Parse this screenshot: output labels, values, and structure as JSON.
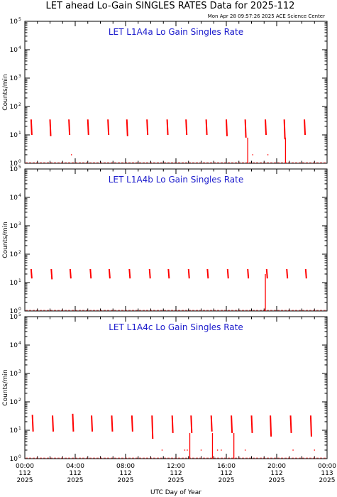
{
  "header": {
    "title": "LET ahead Lo-Gain SINGLES RATES Data for 2025-112",
    "timestamp": "Mon Apr 28 09:57:26 2025 ACE Science Center"
  },
  "axes": {
    "ylabel": "Counts/min",
    "xlabel": "UTC Day of Year",
    "y_tick_exponents": [
      "0",
      "1",
      "2",
      "3",
      "4",
      "5"
    ],
    "y_tick_base": "10",
    "x_ticks": [
      {
        "time": "00:00",
        "doy": "112",
        "year": "2025"
      },
      {
        "time": "04:00",
        "doy": "112",
        "year": "2025"
      },
      {
        "time": "08:00",
        "doy": "112",
        "year": "2025"
      },
      {
        "time": "12:00",
        "doy": "112",
        "year": "2025"
      },
      {
        "time": "16:00",
        "doy": "112",
        "year": "2025"
      },
      {
        "time": "20:00",
        "doy": "112",
        "year": "2025"
      },
      {
        "time": "00:00",
        "doy": "113",
        "year": "2025"
      }
    ]
  },
  "colors": {
    "trace": "#ff0000",
    "panel_title": "#1a1acc",
    "axis": "#000000"
  },
  "chart_data": [
    {
      "type": "line",
      "title": "LET L1A4a Lo Gain Singles Rate",
      "xlabel": "",
      "ylabel": "Counts/min",
      "xlim_hours": [
        0,
        24
      ],
      "ylim": [
        1,
        100000
      ],
      "yscale": "log",
      "series": [
        {
          "bursts": [
            {
              "t": 0.5,
              "top": 35,
              "bottom": 10
            },
            {
              "t": 2.0,
              "top": 35,
              "bottom": 9
            },
            {
              "t": 3.5,
              "top": 35,
              "bottom": 10
            },
            {
              "t": 5.0,
              "top": 35,
              "bottom": 10
            },
            {
              "t": 6.6,
              "top": 35,
              "bottom": 10
            },
            {
              "t": 8.1,
              "top": 35,
              "bottom": 9
            },
            {
              "t": 9.7,
              "top": 35,
              "bottom": 10
            },
            {
              "t": 11.3,
              "top": 35,
              "bottom": 10
            },
            {
              "t": 12.8,
              "top": 35,
              "bottom": 10
            },
            {
              "t": 14.4,
              "top": 35,
              "bottom": 10
            },
            {
              "t": 16.0,
              "top": 35,
              "bottom": 9
            },
            {
              "t": 17.5,
              "top": 35,
              "bottom": 8
            },
            {
              "t": 19.1,
              "top": 35,
              "bottom": 10
            },
            {
              "t": 20.6,
              "top": 35,
              "bottom": 7
            },
            {
              "t": 22.2,
              "top": 35,
              "bottom": 10
            }
          ],
          "spikes": [
            {
              "t": 17.7,
              "value": 8
            },
            {
              "t": 20.7,
              "value": 8
            }
          ],
          "points": [
            {
              "t": 18.1,
              "value": 2
            },
            {
              "t": 3.7,
              "value": 2
            },
            {
              "t": 19.3,
              "value": 2
            }
          ],
          "baseline": 1
        }
      ]
    },
    {
      "type": "line",
      "title": "LET L1A4b Lo Gain Singles Rate",
      "xlabel": "",
      "ylabel": "Counts/min",
      "xlim_hours": [
        0,
        24
      ],
      "ylim": [
        1,
        100000
      ],
      "yscale": "log",
      "series": [
        {
          "bursts": [
            {
              "t": 0.5,
              "top": 30,
              "bottom": 14
            },
            {
              "t": 2.1,
              "top": 30,
              "bottom": 13
            },
            {
              "t": 3.6,
              "top": 30,
              "bottom": 14
            },
            {
              "t": 5.2,
              "top": 30,
              "bottom": 14
            },
            {
              "t": 6.7,
              "top": 30,
              "bottom": 14
            },
            {
              "t": 8.3,
              "top": 30,
              "bottom": 14
            },
            {
              "t": 9.9,
              "top": 30,
              "bottom": 14
            },
            {
              "t": 11.4,
              "top": 30,
              "bottom": 14
            },
            {
              "t": 13.0,
              "top": 30,
              "bottom": 14
            },
            {
              "t": 14.5,
              "top": 30,
              "bottom": 14
            },
            {
              "t": 16.1,
              "top": 30,
              "bottom": 14
            },
            {
              "t": 17.7,
              "top": 30,
              "bottom": 14
            },
            {
              "t": 19.2,
              "top": 30,
              "bottom": 14
            },
            {
              "t": 20.8,
              "top": 30,
              "bottom": 14
            },
            {
              "t": 22.3,
              "top": 30,
              "bottom": 14
            }
          ],
          "spikes": [
            {
              "t": 19.1,
              "value": 20
            }
          ],
          "points": [],
          "baseline": 1
        }
      ]
    },
    {
      "type": "line",
      "title": "LET L1A4c Lo Gain Singles Rate",
      "xlabel": "",
      "ylabel": "Counts/min",
      "xlim_hours": [
        0,
        24
      ],
      "ylim": [
        1,
        100000
      ],
      "yscale": "log",
      "series": [
        {
          "bursts": [
            {
              "t": 0.6,
              "top": 35,
              "bottom": 9
            },
            {
              "t": 2.2,
              "top": 33,
              "bottom": 9
            },
            {
              "t": 3.8,
              "top": 38,
              "bottom": 9
            },
            {
              "t": 5.3,
              "top": 33,
              "bottom": 9
            },
            {
              "t": 6.9,
              "top": 33,
              "bottom": 9
            },
            {
              "t": 8.5,
              "top": 33,
              "bottom": 9
            },
            {
              "t": 10.1,
              "top": 33,
              "bottom": 5
            },
            {
              "t": 11.7,
              "top": 33,
              "bottom": 8
            },
            {
              "t": 13.2,
              "top": 33,
              "bottom": 8
            },
            {
              "t": 14.8,
              "top": 33,
              "bottom": 9
            },
            {
              "t": 16.4,
              "top": 33,
              "bottom": 8
            },
            {
              "t": 18.0,
              "top": 33,
              "bottom": 8
            },
            {
              "t": 19.5,
              "top": 33,
              "bottom": 6
            },
            {
              "t": 21.1,
              "top": 33,
              "bottom": 8
            },
            {
              "t": 22.7,
              "top": 33,
              "bottom": 6
            }
          ],
          "spikes": [
            {
              "t": 13.1,
              "value": 8
            },
            {
              "t": 14.9,
              "value": 8
            },
            {
              "t": 16.6,
              "value": 8
            }
          ],
          "points": [
            {
              "t": 10.9,
              "value": 2
            },
            {
              "t": 12.7,
              "value": 2
            },
            {
              "t": 12.9,
              "value": 2
            },
            {
              "t": 15.3,
              "value": 2
            },
            {
              "t": 15.6,
              "value": 2
            },
            {
              "t": 14.0,
              "value": 2
            },
            {
              "t": 17.5,
              "value": 2
            },
            {
              "t": 21.3,
              "value": 2
            },
            {
              "t": 23.0,
              "value": 2
            }
          ],
          "baseline": 1
        }
      ]
    }
  ]
}
